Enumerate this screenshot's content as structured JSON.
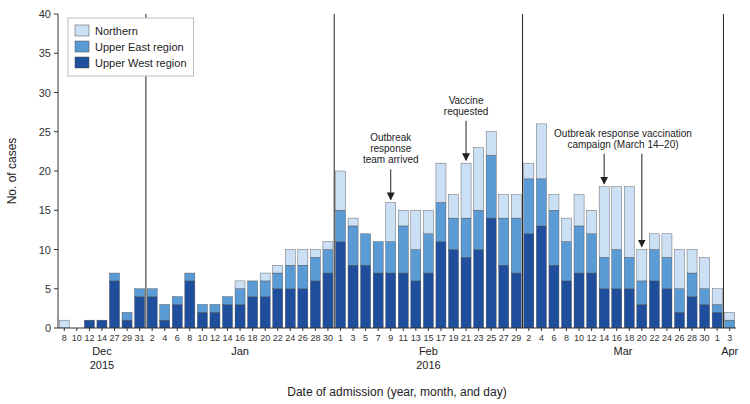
{
  "chart_data": {
    "type": "bar",
    "stacked": true,
    "grid": false,
    "legend": "upper left",
    "xlabel": "Date of admission (year, month, and day)",
    "ylabel": "No. of cases",
    "ylim": [
      0,
      40
    ],
    "yticks": [
      0,
      5,
      10,
      15,
      20,
      25,
      30,
      35,
      40
    ],
    "categories": [
      "8",
      "10",
      "12",
      "14",
      "27",
      "29",
      "31",
      "2",
      "4",
      "6",
      "8",
      "10",
      "12",
      "14",
      "16",
      "18",
      "20",
      "22",
      "24",
      "26",
      "28",
      "30",
      "1",
      "3",
      "5",
      "7",
      "9",
      "11",
      "13",
      "15",
      "17",
      "19",
      "21",
      "23",
      "25",
      "27",
      "29",
      "2",
      "4",
      "6",
      "8",
      "10",
      "12",
      "14",
      "16",
      "18",
      "20",
      "22",
      "24",
      "26",
      "28",
      "30",
      "1",
      "3"
    ],
    "groups": [
      {
        "label": "Dec",
        "start": 0,
        "year": "2015"
      },
      {
        "label": "Jan",
        "start": 7
      },
      {
        "label": "Feb",
        "start": 22,
        "year": "2016"
      },
      {
        "label": "Mar",
        "start": 37
      },
      {
        "label": "Apr",
        "start": 53
      }
    ],
    "series": [
      {
        "name": "Upper West region",
        "color": "#1f4e9c",
        "values": [
          0,
          0,
          1,
          1,
          6,
          1,
          4,
          4,
          1,
          3,
          6,
          2,
          2,
          3,
          3,
          4,
          4,
          5,
          5,
          5,
          6,
          7,
          11,
          8,
          8,
          7,
          7,
          7,
          6,
          7,
          11,
          10,
          9,
          10,
          14,
          8,
          7,
          12,
          13,
          8,
          6,
          7,
          7,
          5,
          5,
          5,
          3,
          6,
          5,
          2,
          4,
          3,
          2,
          0
        ]
      },
      {
        "name": "Upper East region",
        "color": "#5b9bd5",
        "values": [
          0,
          0,
          0,
          0,
          1,
          1,
          1,
          1,
          2,
          1,
          1,
          1,
          1,
          1,
          2,
          2,
          2,
          2,
          3,
          3,
          3,
          3,
          4,
          5,
          4,
          4,
          4,
          6,
          4,
          5,
          5,
          4,
          5,
          5,
          8,
          6,
          7,
          7,
          6,
          7,
          5,
          6,
          5,
          4,
          5,
          4,
          3,
          4,
          4,
          3,
          3,
          2,
          1,
          1
        ]
      },
      {
        "name": "Northern",
        "color": "#cce0f5",
        "values": [
          1,
          0,
          0,
          0,
          0,
          0,
          0,
          0,
          0,
          0,
          0,
          0,
          0,
          0,
          1,
          0,
          1,
          1,
          2,
          2,
          1,
          1,
          5,
          1,
          0,
          0,
          5,
          2,
          5,
          3,
          5,
          3,
          7,
          8,
          3,
          3,
          3,
          2,
          7,
          2,
          3,
          4,
          3,
          9,
          8,
          9,
          4,
          2,
          3,
          5,
          3,
          4,
          2,
          1
        ]
      }
    ],
    "annotations": [
      {
        "text": "Outbreak\nresponse\nteam arrived",
        "category_indices": [
          26
        ]
      },
      {
        "text": "Vaccine\nrequested",
        "category_indices": [
          32
        ]
      },
      {
        "text": "Outbreak response vaccination\ncampaign (March 14–20)",
        "category_indices": [
          43,
          46
        ]
      }
    ]
  }
}
